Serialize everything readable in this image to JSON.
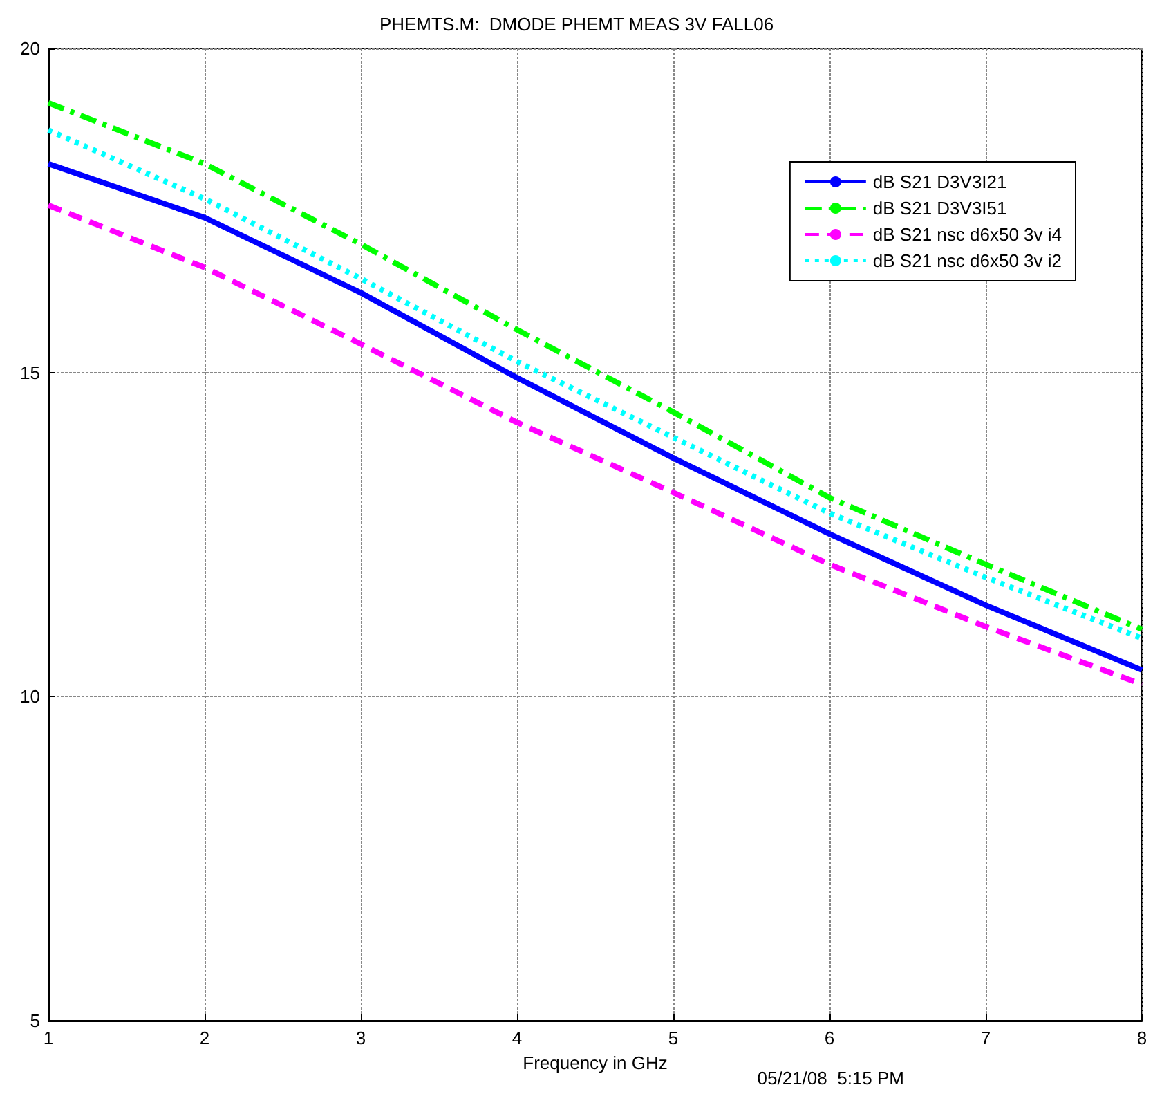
{
  "chart_data": {
    "type": "line",
    "title": "PHEMTS.M:  DMODE PHEMT MEAS 3V FALL06",
    "xlabel": "Frequency in GHz",
    "annotations": [
      "05/21/08  5:15 PM"
    ],
    "x": [
      1,
      2,
      3,
      4,
      5,
      6,
      7,
      8
    ],
    "series": [
      {
        "name": "dB S21 D3V3I21",
        "color": "#0000ff",
        "line_style": "solid",
        "values": [
          18.22,
          17.39,
          16.23,
          14.92,
          13.68,
          12.51,
          11.41,
          10.41
        ]
      },
      {
        "name": "dB S21 D3V3I51",
        "color": "#00ff00",
        "line_style": "dashdot",
        "values": [
          19.16,
          18.22,
          16.98,
          15.66,
          14.39,
          13.07,
          12.04,
          11.04
        ]
      },
      {
        "name": "dB S21 nsc d6x50 3v i4",
        "color": "#ff00ff",
        "line_style": "dashed",
        "values": [
          17.58,
          16.62,
          15.44,
          14.23,
          13.15,
          12.04,
          11.08,
          10.19
        ]
      },
      {
        "name": "dB S21 nsc d6x50 3v i2",
        "color": "#00ffff",
        "line_style": "dotted",
        "values": [
          18.74,
          17.68,
          16.45,
          15.17,
          14.0,
          12.83,
          11.84,
          10.9
        ]
      }
    ],
    "xlim": [
      1,
      8
    ],
    "xticks": [
      1,
      2,
      3,
      4,
      5,
      6,
      7,
      8
    ],
    "ylim": [
      5,
      20
    ],
    "yticks": [
      5,
      10,
      15,
      20
    ],
    "grid": true,
    "legend": "top right",
    "marker": "none"
  }
}
